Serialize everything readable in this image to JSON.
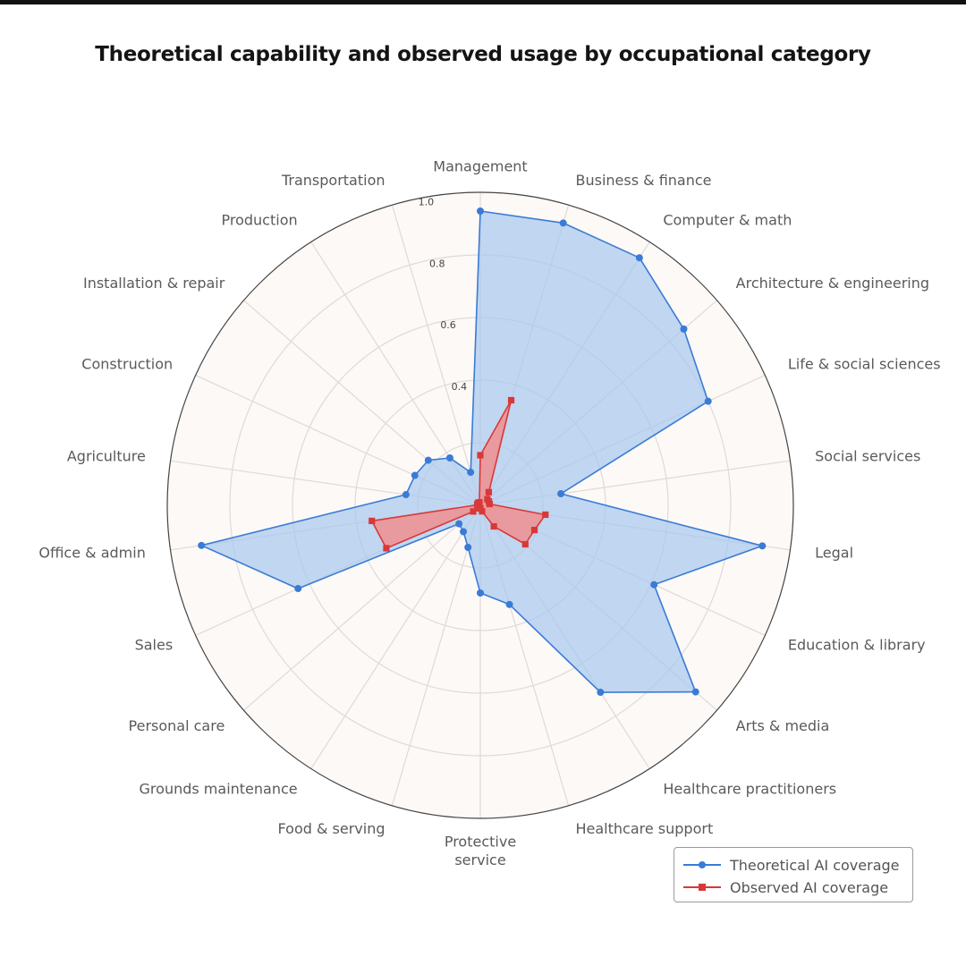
{
  "chart_data": {
    "type": "radar",
    "title": "Theoretical capability and observed usage by occupational category",
    "categories": [
      "Management",
      "Business & finance",
      "Computer & math",
      "Architecture & engineering",
      "Life & social sciences",
      "Social services",
      "Legal",
      "Education & library",
      "Arts & media",
      "Healthcare practitioners",
      "Healthcare support",
      "Protective service",
      "Food & serving",
      "Grounds maintenance",
      "Personal care",
      "Sales",
      "Office & admin",
      "Agriculture",
      "Construction",
      "Installation & repair",
      "Production",
      "Transportation"
    ],
    "rlim": [
      0,
      1.0
    ],
    "rticks": [
      0.4,
      0.6,
      0.8,
      1.0
    ],
    "rtick_labels": [
      "0.4",
      "0.6",
      "0.8",
      "1.0"
    ],
    "grid": true,
    "series": [
      {
        "name": "Theoretical AI coverage",
        "color": "#3a7bd5",
        "fill": "#a9c8ee",
        "marker": "circle",
        "values": [
          0.94,
          0.94,
          0.94,
          0.86,
          0.8,
          0.26,
          0.91,
          0.61,
          0.91,
          0.71,
          0.33,
          0.28,
          0.14,
          0.1,
          0.09,
          0.64,
          0.9,
          0.24,
          0.23,
          0.22,
          0.18,
          0.11
        ]
      },
      {
        "name": "Observed AI coverage",
        "color": "#d93838",
        "fill": "#ee8f8f",
        "marker": "square",
        "values": [
          0.16,
          0.35,
          0.05,
          0.03,
          0.03,
          0.03,
          0.21,
          0.19,
          0.19,
          0.08,
          0.02,
          0.01,
          0.01,
          0.01,
          0.03,
          0.33,
          0.35,
          0.01,
          0.01,
          0.01,
          0.01,
          0.01
        ]
      }
    ],
    "legend": {
      "position": "bottom-right"
    }
  },
  "colors": {
    "plot_background": "#fcf9f6",
    "grid": "#dedbd7",
    "outer_circle": "#444444"
  }
}
